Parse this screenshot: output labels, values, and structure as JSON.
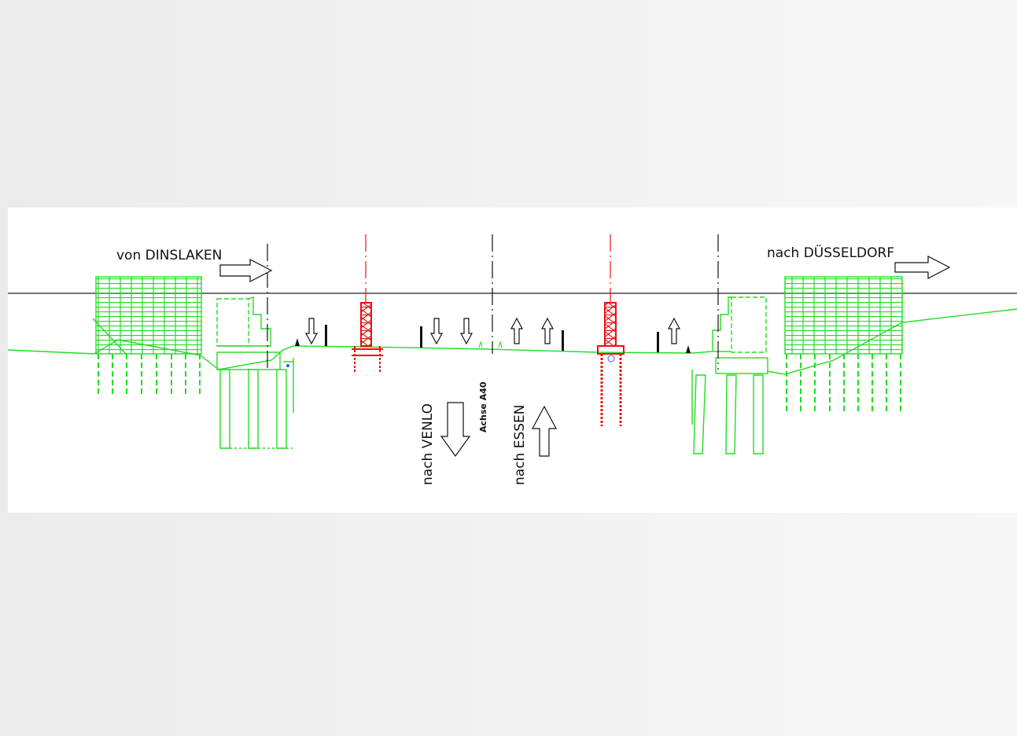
{
  "labels": {
    "from": "von DINSLAKEN",
    "to": "nach DÜSSELDORF",
    "venlo": "nach VENLO",
    "axis": "Achse A40",
    "essen": "nach ESSEN"
  }
}
